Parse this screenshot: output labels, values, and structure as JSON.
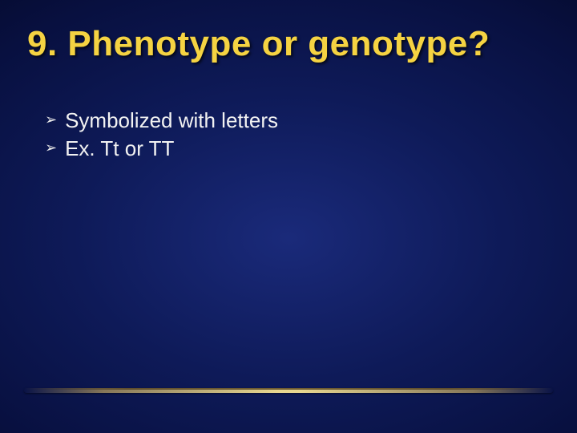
{
  "slide": {
    "title": "9.  Phenotype or genotype?",
    "title_color": "#f5d342",
    "title_fontsize": 44,
    "title_font": "Impact",
    "bullets": [
      {
        "text": "Symbolized with letters"
      },
      {
        "text": "Ex.  Tt or TT"
      }
    ],
    "bullet_marker": "➢",
    "bullet_text_color": "#f2f2f2",
    "bullet_fontsize": 26,
    "background_gradient": {
      "type": "radial",
      "center_color": "#1a2a7a",
      "mid_color": "#081040",
      "edge_color": "#010210"
    },
    "divider": {
      "color_mid": "#ffeb96",
      "color_edge": "#ffd764"
    }
  }
}
